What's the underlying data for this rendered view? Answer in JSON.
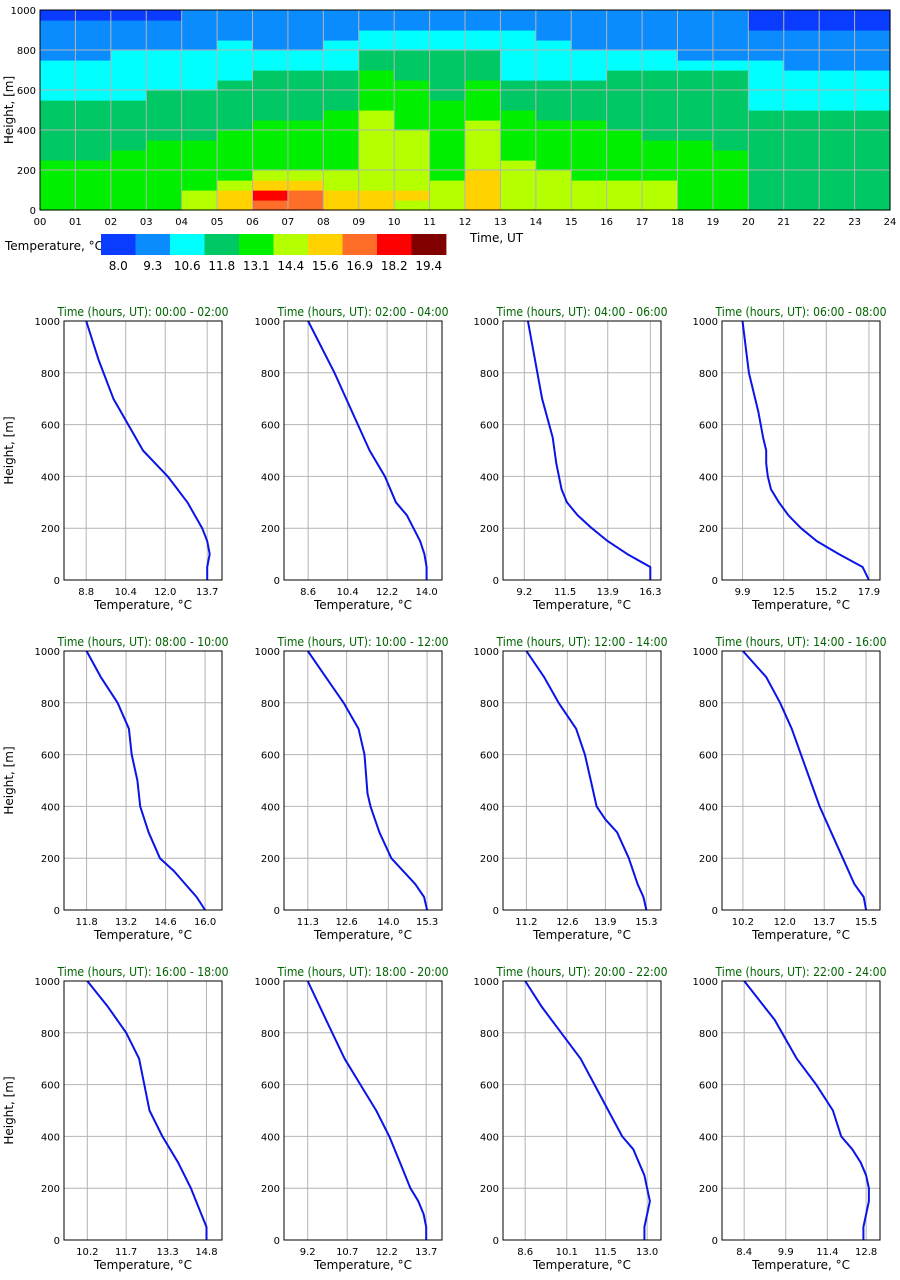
{
  "heatmap": {
    "ylabel": "Height, [m]",
    "xlabel": "Time, UT",
    "y_ticks": [
      "0",
      "200",
      "400",
      "600",
      "800",
      "1000"
    ],
    "x_ticks": [
      "00",
      "01",
      "02",
      "03",
      "04",
      "05",
      "06",
      "07",
      "08",
      "09",
      "10",
      "11",
      "12",
      "13",
      "14",
      "15",
      "16",
      "17",
      "18",
      "19",
      "20",
      "21",
      "22",
      "23",
      "24"
    ]
  },
  "colorbar": {
    "label": "Temperature, °C",
    "colors": [
      "#0a3cff",
      "#0a8cff",
      "#00ffff",
      "#00c864",
      "#00f000",
      "#b4ff00",
      "#ffd200",
      "#ff6e28",
      "#ff0000",
      "#800000"
    ],
    "ticks": [
      "8.0",
      "9.3",
      "10.6",
      "11.8",
      "13.1",
      "14.4",
      "15.6",
      "16.9",
      "18.2",
      "19.4"
    ]
  },
  "chart_data": [
    {
      "type": "heatmap",
      "xlabel": "Time, UT",
      "ylabel": "Height, [m]",
      "xlim": [
        0,
        24
      ],
      "ylim": [
        0,
        1000
      ],
      "grid": true,
      "colorbar_label": "Temperature, °C",
      "colorbar_ticks": [
        8.0,
        9.3,
        10.6,
        11.8,
        13.1,
        14.4,
        15.6,
        16.9,
        18.2,
        19.4
      ],
      "heights": [
        25,
        75,
        125,
        175,
        225,
        275,
        325,
        375,
        425,
        475,
        525,
        575,
        625,
        675,
        725,
        775,
        825,
        875,
        925,
        975
      ],
      "times": [
        0,
        1,
        2,
        3,
        4,
        5,
        6,
        7,
        8,
        9,
        10,
        11,
        12,
        13,
        14,
        15,
        16,
        17,
        18,
        19,
        20,
        21,
        22,
        23
      ],
      "levels": [
        [
          4,
          4,
          4,
          4,
          5,
          6,
          7,
          7,
          6,
          6,
          5,
          5,
          6,
          5,
          5,
          5,
          5,
          5,
          4,
          4,
          3,
          3,
          3,
          3
        ],
        [
          4,
          4,
          4,
          4,
          5,
          6,
          8,
          7,
          6,
          6,
          6,
          5,
          6,
          5,
          5,
          5,
          5,
          5,
          4,
          4,
          3,
          3,
          3,
          3
        ],
        [
          4,
          4,
          4,
          4,
          4,
          5,
          6,
          6,
          5,
          5,
          5,
          5,
          6,
          5,
          5,
          5,
          5,
          5,
          4,
          4,
          3,
          3,
          3,
          3
        ],
        [
          4,
          4,
          4,
          4,
          4,
          4,
          5,
          5,
          5,
          5,
          5,
          4,
          6,
          5,
          5,
          4,
          4,
          4,
          4,
          4,
          3,
          3,
          3,
          3
        ],
        [
          4,
          4,
          4,
          4,
          4,
          4,
          4,
          4,
          4,
          5,
          5,
          4,
          5,
          5,
          4,
          4,
          4,
          4,
          4,
          4,
          3,
          3,
          3,
          3
        ],
        [
          3,
          3,
          4,
          4,
          4,
          4,
          4,
          4,
          4,
          5,
          5,
          4,
          5,
          4,
          4,
          4,
          4,
          4,
          4,
          4,
          3,
          3,
          3,
          3
        ],
        [
          3,
          3,
          3,
          4,
          4,
          4,
          4,
          4,
          4,
          5,
          5,
          4,
          5,
          4,
          4,
          4,
          4,
          4,
          4,
          3,
          3,
          3,
          3,
          3
        ],
        [
          3,
          3,
          3,
          3,
          3,
          4,
          4,
          4,
          4,
          5,
          5,
          4,
          5,
          4,
          4,
          4,
          4,
          3,
          3,
          3,
          3,
          3,
          3,
          3
        ],
        [
          3,
          3,
          3,
          3,
          3,
          3,
          4,
          4,
          4,
          5,
          4,
          4,
          5,
          4,
          4,
          4,
          3,
          3,
          3,
          3,
          3,
          3,
          3,
          3
        ],
        [
          3,
          3,
          3,
          3,
          3,
          3,
          3,
          3,
          4,
          5,
          4,
          4,
          4,
          4,
          3,
          3,
          3,
          3,
          3,
          3,
          3,
          3,
          3,
          3
        ],
        [
          3,
          3,
          3,
          3,
          3,
          3,
          3,
          3,
          3,
          4,
          4,
          4,
          4,
          3,
          3,
          3,
          3,
          3,
          3,
          3,
          2,
          2,
          2,
          2
        ],
        [
          2,
          2,
          2,
          3,
          3,
          3,
          3,
          3,
          3,
          4,
          4,
          3,
          4,
          3,
          3,
          3,
          3,
          3,
          3,
          3,
          2,
          2,
          2,
          2
        ],
        [
          2,
          2,
          2,
          2,
          2,
          3,
          3,
          3,
          3,
          4,
          4,
          3,
          4,
          3,
          3,
          3,
          3,
          3,
          3,
          3,
          2,
          2,
          2,
          2
        ],
        [
          2,
          2,
          2,
          2,
          2,
          2,
          3,
          3,
          3,
          4,
          3,
          3,
          3,
          2,
          2,
          2,
          3,
          3,
          3,
          3,
          2,
          2,
          2,
          2
        ],
        [
          2,
          2,
          2,
          2,
          2,
          2,
          2,
          2,
          2,
          3,
          3,
          3,
          3,
          2,
          2,
          2,
          2,
          2,
          2,
          2,
          2,
          1,
          1,
          1
        ],
        [
          1,
          1,
          2,
          2,
          2,
          2,
          2,
          2,
          2,
          3,
          3,
          3,
          3,
          2,
          2,
          2,
          2,
          2,
          1,
          1,
          1,
          1,
          1,
          1
        ],
        [
          1,
          1,
          1,
          1,
          1,
          2,
          1,
          1,
          2,
          2,
          2,
          2,
          2,
          2,
          2,
          1,
          1,
          1,
          1,
          1,
          1,
          1,
          1,
          1
        ],
        [
          1,
          1,
          1,
          1,
          1,
          1,
          1,
          1,
          1,
          2,
          2,
          2,
          2,
          2,
          1,
          1,
          1,
          1,
          1,
          1,
          1,
          1,
          1,
          1
        ],
        [
          1,
          1,
          1,
          1,
          1,
          1,
          1,
          1,
          1,
          1,
          1,
          1,
          1,
          1,
          1,
          1,
          1,
          1,
          1,
          1,
          0,
          0,
          0,
          0
        ],
        [
          0,
          0,
          0,
          0,
          1,
          1,
          1,
          1,
          1,
          1,
          1,
          1,
          1,
          1,
          1,
          1,
          1,
          1,
          1,
          1,
          0,
          0,
          0,
          0
        ]
      ]
    },
    {
      "type": "line",
      "title": "Time (hours, UT): 00:00 - 02:00",
      "xlabel": "Temperature, °C",
      "ylabel": "Height, [m]",
      "xticks": [
        "8.8",
        "10.4",
        "12.0",
        "13.7"
      ],
      "xtick_values": [
        8.8,
        10.4,
        12.0,
        13.7
      ],
      "xlim": [
        7.9,
        14.3
      ],
      "yticks": [
        "0",
        "200",
        "400",
        "600",
        "800",
        "1000"
      ],
      "ylim": [
        0,
        1000
      ],
      "x": [
        13.7,
        13.7,
        13.8,
        13.7,
        13.5,
        13.2,
        12.9,
        12.5,
        12.1,
        11.6,
        11.1,
        10.5,
        9.9,
        9.3,
        8.8
      ],
      "y": [
        0,
        50,
        100,
        150,
        200,
        250,
        300,
        350,
        400,
        450,
        500,
        600,
        700,
        850,
        1000
      ]
    },
    {
      "type": "line",
      "title": "Time (hours, UT): 02:00 - 04:00",
      "xlabel": "Temperature, °C",
      "ylabel": "Height, [m]",
      "xticks": [
        "8.6",
        "10.4",
        "12.2",
        "14.0"
      ],
      "xtick_values": [
        8.6,
        10.4,
        12.2,
        14.0
      ],
      "xlim": [
        7.5,
        14.7
      ],
      "yticks": [
        "0",
        "200",
        "400",
        "600",
        "800",
        "1000"
      ],
      "ylim": [
        0,
        1000
      ],
      "x": [
        14.0,
        14.0,
        13.9,
        13.7,
        13.4,
        13.1,
        12.6,
        12.1,
        11.4,
        10.6,
        9.8,
        8.6
      ],
      "y": [
        0,
        50,
        100,
        150,
        200,
        250,
        300,
        400,
        500,
        650,
        800,
        1000
      ]
    },
    {
      "type": "line",
      "title": "Time (hours, UT): 04:00 - 06:00",
      "xlabel": "Temperature, °C",
      "ylabel": "Height, [m]",
      "xticks": [
        "9.2",
        "11.5",
        "13.9",
        "16.3"
      ],
      "xtick_values": [
        9.2,
        11.5,
        13.9,
        16.3
      ],
      "xlim": [
        8.0,
        16.9
      ],
      "yticks": [
        "0",
        "200",
        "400",
        "600",
        "800",
        "1000"
      ],
      "ylim": [
        0,
        1000
      ],
      "x": [
        16.3,
        16.3,
        15.0,
        13.9,
        13.0,
        12.2,
        11.6,
        11.3,
        11.0,
        10.8,
        10.2,
        9.4
      ],
      "y": [
        0,
        50,
        100,
        150,
        200,
        250,
        300,
        350,
        450,
        550,
        700,
        1000
      ]
    },
    {
      "type": "line",
      "title": "Time (hours, UT): 06:00 - 08:00",
      "xlabel": "Temperature, °C",
      "ylabel": "Height, [m]",
      "xticks": [
        "9.9",
        "12.5",
        "15.2",
        "17.9"
      ],
      "xtick_values": [
        9.9,
        12.5,
        15.2,
        17.9
      ],
      "xlim": [
        8.6,
        18.6
      ],
      "yticks": [
        "0",
        "200",
        "400",
        "600",
        "800",
        "1000"
      ],
      "ylim": [
        0,
        1000
      ],
      "x": [
        17.9,
        17.5,
        16.0,
        14.6,
        13.6,
        12.8,
        12.2,
        11.7,
        11.5,
        11.4,
        11.4,
        11.2,
        10.9,
        10.3,
        9.9
      ],
      "y": [
        0,
        50,
        100,
        150,
        200,
        250,
        300,
        350,
        400,
        450,
        500,
        550,
        650,
        800,
        1000
      ]
    },
    {
      "type": "line",
      "title": "Time (hours, UT): 08:00 - 10:00",
      "xlabel": "Temperature, °C",
      "ylabel": "Height, [m]",
      "xticks": [
        "11.8",
        "13.2",
        "14.6",
        "16.0"
      ],
      "xtick_values": [
        11.8,
        13.2,
        14.6,
        16.0
      ],
      "xlim": [
        11.0,
        16.6
      ],
      "yticks": [
        "0",
        "200",
        "400",
        "600",
        "800",
        "1000"
      ],
      "ylim": [
        0,
        1000
      ],
      "x": [
        16.0,
        15.7,
        15.3,
        14.9,
        14.4,
        14.0,
        13.7,
        13.6,
        13.4,
        13.3,
        12.9,
        12.3,
        11.8
      ],
      "y": [
        0,
        50,
        100,
        150,
        200,
        300,
        400,
        500,
        600,
        700,
        800,
        900,
        1000
      ]
    },
    {
      "type": "line",
      "title": "Time (hours, UT): 10:00 - 12:00",
      "xlabel": "Temperature, °C",
      "ylabel": "Height, [m]",
      "xticks": [
        "11.3",
        "12.6",
        "14.0",
        "15.3"
      ],
      "xtick_values": [
        11.3,
        12.6,
        14.0,
        15.3
      ],
      "xlim": [
        10.5,
        15.8
      ],
      "yticks": [
        "0",
        "200",
        "400",
        "600",
        "800",
        "1000"
      ],
      "ylim": [
        0,
        1000
      ],
      "x": [
        15.3,
        15.2,
        14.9,
        14.5,
        14.1,
        13.7,
        13.4,
        13.3,
        13.2,
        13.0,
        12.5,
        11.9,
        11.3
      ],
      "y": [
        0,
        50,
        100,
        150,
        200,
        300,
        400,
        450,
        600,
        700,
        800,
        900,
        1000
      ]
    },
    {
      "type": "line",
      "title": "Time (hours, UT): 12:00 - 14:00",
      "xlabel": "Temperature, °C",
      "ylabel": "Height, [m]",
      "xticks": [
        "11.2",
        "12.6",
        "13.9",
        "15.3"
      ],
      "xtick_values": [
        11.2,
        12.6,
        13.9,
        15.3
      ],
      "xlim": [
        10.4,
        15.8
      ],
      "yticks": [
        "0",
        "200",
        "400",
        "600",
        "800",
        "1000"
      ],
      "ylim": [
        0,
        1000
      ],
      "x": [
        15.3,
        15.2,
        15.0,
        14.7,
        14.3,
        13.9,
        13.6,
        13.4,
        13.2,
        12.9,
        12.3,
        11.8,
        11.2
      ],
      "y": [
        0,
        50,
        100,
        200,
        300,
        350,
        400,
        500,
        600,
        700,
        800,
        900,
        1000
      ]
    },
    {
      "type": "line",
      "title": "Time (hours, UT): 14:00 - 16:00",
      "xlabel": "Temperature, °C",
      "ylabel": "Height, [m]",
      "xticks": [
        "10.2",
        "12.0",
        "13.7",
        "15.5"
      ],
      "xtick_values": [
        10.2,
        12.0,
        13.7,
        15.5
      ],
      "xlim": [
        9.3,
        16.1
      ],
      "yticks": [
        "0",
        "200",
        "400",
        "600",
        "800",
        "1000"
      ],
      "ylim": [
        0,
        1000
      ],
      "x": [
        15.5,
        15.4,
        15.0,
        14.5,
        14.0,
        13.5,
        13.1,
        12.7,
        12.3,
        11.8,
        11.2,
        10.2
      ],
      "y": [
        0,
        50,
        100,
        200,
        300,
        400,
        500,
        600,
        700,
        800,
        900,
        1000
      ]
    },
    {
      "type": "line",
      "title": "Time (hours, UT): 16:00 - 18:00",
      "xlabel": "Temperature, °C",
      "ylabel": "Height, [m]",
      "xticks": [
        "10.2",
        "11.7",
        "13.3",
        "14.8"
      ],
      "xtick_values": [
        10.2,
        11.7,
        13.3,
        14.8
      ],
      "xlim": [
        9.3,
        15.4
      ],
      "yticks": [
        "0",
        "200",
        "400",
        "600",
        "800",
        "1000"
      ],
      "ylim": [
        0,
        1000
      ],
      "x": [
        14.8,
        14.8,
        14.6,
        14.2,
        13.7,
        13.1,
        12.6,
        12.4,
        12.2,
        11.7,
        11.0,
        10.2
      ],
      "y": [
        0,
        50,
        100,
        200,
        300,
        400,
        500,
        600,
        700,
        800,
        900,
        1000
      ]
    },
    {
      "type": "line",
      "title": "Time (hours, UT): 18:00 - 20:00",
      "xlabel": "Temperature, °C",
      "ylabel": "Height, [m]",
      "xticks": [
        "9.2",
        "10.7",
        "12.2",
        "13.7"
      ],
      "xtick_values": [
        9.2,
        10.7,
        12.2,
        13.7
      ],
      "xlim": [
        8.3,
        14.3
      ],
      "yticks": [
        "0",
        "200",
        "400",
        "600",
        "800",
        "1000"
      ],
      "ylim": [
        0,
        1000
      ],
      "x": [
        13.7,
        13.7,
        13.6,
        13.4,
        13.1,
        12.7,
        12.3,
        11.8,
        11.2,
        10.6,
        9.9,
        9.2
      ],
      "y": [
        0,
        50,
        100,
        150,
        200,
        300,
        400,
        500,
        600,
        700,
        850,
        1000
      ]
    },
    {
      "type": "line",
      "title": "Time (hours, UT): 20:00 - 22:00",
      "xlabel": "Temperature, °C",
      "ylabel": "Height, [m]",
      "xticks": [
        "8.6",
        "10.1",
        "11.5",
        "13.0"
      ],
      "xtick_values": [
        8.6,
        10.1,
        11.5,
        13.0
      ],
      "xlim": [
        7.8,
        13.5
      ],
      "yticks": [
        "0",
        "200",
        "400",
        "600",
        "800",
        "1000"
      ],
      "ylim": [
        0,
        1000
      ],
      "x": [
        12.9,
        12.9,
        13.1,
        13.0,
        12.9,
        12.7,
        12.5,
        12.1,
        11.6,
        11.1,
        10.6,
        9.9,
        9.2,
        8.6
      ],
      "y": [
        0,
        50,
        150,
        200,
        250,
        300,
        350,
        400,
        500,
        600,
        700,
        800,
        900,
        1000
      ]
    },
    {
      "type": "line",
      "title": "Time (hours, UT): 22:00 - 24:00",
      "xlabel": "Temperature, °C",
      "ylabel": "Height, [m]",
      "xticks": [
        "8.4",
        "9.9",
        "11.4",
        "12.8"
      ],
      "xtick_values": [
        8.4,
        9.9,
        11.4,
        12.8
      ],
      "xlim": [
        7.6,
        13.3
      ],
      "yticks": [
        "0",
        "200",
        "400",
        "600",
        "800",
        "1000"
      ],
      "ylim": [
        0,
        1000
      ],
      "x": [
        12.7,
        12.7,
        12.9,
        12.9,
        12.8,
        12.6,
        12.3,
        11.9,
        11.6,
        11.0,
        10.3,
        9.5,
        8.4
      ],
      "y": [
        0,
        50,
        150,
        200,
        250,
        300,
        350,
        400,
        500,
        600,
        700,
        850,
        1000
      ]
    }
  ]
}
